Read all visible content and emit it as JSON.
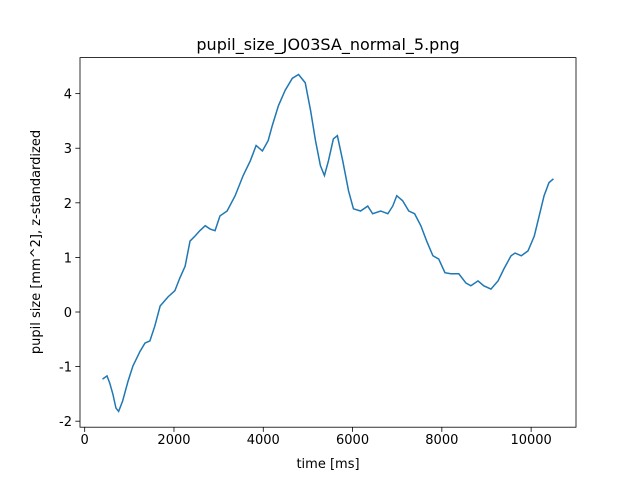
{
  "chart_data": {
    "type": "line",
    "title": "pupil_size_JO03SA_normal_5.png",
    "x_label": "time [ms]",
    "y_label": "pupil size [mm^2], z-standardized",
    "xlim": [
      -105,
      11005
    ],
    "xticks": [
      0,
      2000,
      4000,
      6000,
      8000,
      10000
    ],
    "ylim": [
      -2.11,
      4.66
    ],
    "yticks": [
      -2,
      -1,
      0,
      1,
      2,
      3,
      4
    ],
    "series": [
      {
        "color": "#1f77b4",
        "x": [
          400,
          500,
          560,
          630,
          700,
          760,
          850,
          970,
          1080,
          1240,
          1350,
          1460,
          1570,
          1690,
          1870,
          2020,
          2130,
          2250,
          2360,
          2470,
          2580,
          2700,
          2810,
          2920,
          3030,
          3190,
          3370,
          3550,
          3710,
          3840,
          3980,
          4110,
          4200,
          4340,
          4490,
          4650,
          4790,
          4940,
          5060,
          5170,
          5280,
          5370,
          5460,
          5570,
          5660,
          5780,
          5910,
          6020,
          6180,
          6340,
          6450,
          6630,
          6790,
          6900,
          6990,
          7120,
          7260,
          7390,
          7530,
          7660,
          7800,
          7930,
          8070,
          8200,
          8380,
          8540,
          8650,
          8810,
          8940,
          9100,
          9260,
          9390,
          9550,
          9640,
          9780,
          9930,
          10070,
          10180,
          10290,
          10400,
          10500
        ],
        "values": [
          -1.23,
          -1.17,
          -1.3,
          -1.5,
          -1.76,
          -1.82,
          -1.63,
          -1.27,
          -0.99,
          -0.72,
          -0.57,
          -0.53,
          -0.26,
          0.11,
          0.28,
          0.39,
          0.62,
          0.84,
          1.3,
          1.39,
          1.49,
          1.58,
          1.52,
          1.49,
          1.76,
          1.85,
          2.13,
          2.5,
          2.77,
          3.05,
          2.95,
          3.14,
          3.41,
          3.78,
          4.06,
          4.28,
          4.35,
          4.2,
          3.69,
          3.14,
          2.68,
          2.5,
          2.77,
          3.17,
          3.23,
          2.77,
          2.22,
          1.89,
          1.85,
          1.94,
          1.8,
          1.85,
          1.8,
          1.94,
          2.13,
          2.04,
          1.85,
          1.8,
          1.58,
          1.3,
          1.03,
          0.97,
          0.72,
          0.7,
          0.7,
          0.53,
          0.48,
          0.57,
          0.48,
          0.42,
          0.57,
          0.79,
          1.03,
          1.08,
          1.03,
          1.12,
          1.39,
          1.76,
          2.13,
          2.37,
          2.44
        ]
      }
    ]
  }
}
